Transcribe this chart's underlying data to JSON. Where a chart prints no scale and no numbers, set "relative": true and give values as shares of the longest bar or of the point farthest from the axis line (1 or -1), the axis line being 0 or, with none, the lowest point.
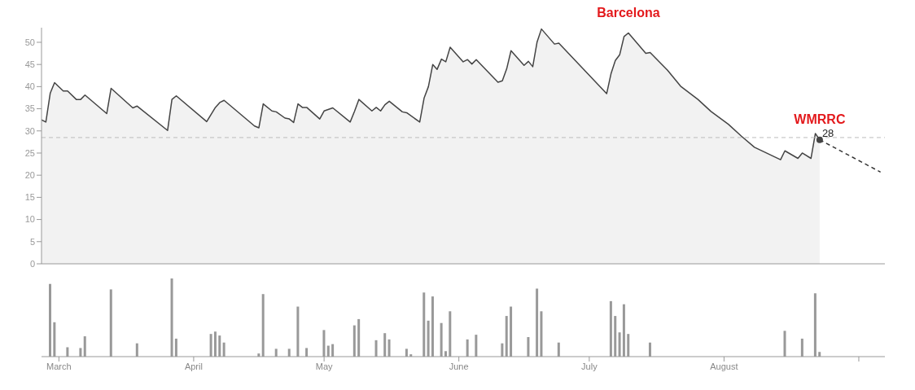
{
  "chart_data": [
    {
      "type": "area",
      "xlim": [
        "--02-25",
        "--09-07"
      ],
      "ylim": [
        0,
        53.3
      ],
      "yticks": [
        0,
        5,
        10,
        15,
        20,
        25,
        30,
        35,
        40,
        45,
        50
      ],
      "tick_labels": "y",
      "series": [
        {
          "type": "area",
          "color": "#444444",
          "x": [
            "--02-25",
            "--02-26",
            "--02-27",
            "--02-28",
            "--03-02",
            "--03-03",
            "--03-05",
            "--03-06",
            "--03-07",
            "--03-12",
            "--03-13",
            "--03-18",
            "--03-19",
            "--03-26",
            "--03-27",
            "--03-28",
            "--04-04",
            "--04-06",
            "--04-07",
            "--04-08",
            "--04-15",
            "--04-16",
            "--04-17",
            "--04-19",
            "--04-20",
            "--04-22",
            "--04-23",
            "--04-24",
            "--04-25",
            "--04-26",
            "--04-27",
            "--04-30",
            "--05-01",
            "--05-03",
            "--05-07",
            "--05-08",
            "--05-09",
            "--05-12",
            "--05-13",
            "--05-14",
            "--05-15",
            "--05-16",
            "--05-19",
            "--05-20",
            "--05-23",
            "--05-24",
            "--05-25",
            "--05-26",
            "--05-27",
            "--05-28",
            "--05-29",
            "--05-30",
            "--06-02",
            "--06-03",
            "--06-04",
            "--06-05",
            "--06-10",
            "--06-11",
            "--06-12",
            "--06-13",
            "--06-16",
            "--06-17",
            "--06-18",
            "--06-19",
            "--06-20",
            "--06-23",
            "--06-24",
            "--07-05",
            "--07-06",
            "--07-07",
            "--07-08",
            "--07-09",
            "--07-10",
            "--07-14",
            "--07-15",
            "--07-19",
            "--07-22",
            "--07-26",
            "--07-29",
            "--08-02",
            "--08-05",
            "--08-08",
            "--08-14",
            "--08-15",
            "--08-18",
            "--08-19",
            "--08-21",
            "--08-22",
            "--08-23"
          ],
          "values": [
            32.5,
            32.0,
            38.5,
            40.9,
            39.0,
            39.0,
            37.1,
            37.1,
            38.1,
            33.9,
            39.6,
            35.2,
            35.6,
            30.1,
            37.1,
            37.9,
            32.1,
            35.3,
            36.4,
            36.9,
            31.1,
            30.7,
            36.1,
            34.5,
            34.3,
            32.9,
            32.7,
            31.9,
            36.1,
            35.3,
            35.3,
            32.7,
            34.5,
            35.2,
            32.0,
            34.4,
            37.1,
            34.5,
            35.3,
            34.5,
            35.9,
            36.7,
            34.3,
            34.1,
            32.0,
            37.4,
            40.0,
            45.0,
            43.9,
            46.2,
            45.6,
            48.9,
            45.6,
            46.1,
            45.1,
            46.1,
            41.0,
            41.3,
            44.0,
            48.1,
            44.8,
            45.7,
            44.5,
            50.1,
            53.0,
            49.6,
            49.8,
            38.4,
            42.9,
            45.9,
            47.2,
            51.3,
            52.1,
            47.5,
            47.7,
            43.7,
            40.1,
            37.1,
            34.4,
            31.5,
            28.8,
            26.3,
            23.5,
            25.5,
            23.8,
            25.0,
            23.8,
            29.4,
            28
          ],
          "value_labels": [
            null,
            null,
            null,
            null,
            null,
            null,
            null,
            null,
            null,
            null,
            null,
            null,
            null,
            null,
            null,
            null,
            null,
            null,
            null,
            null,
            null,
            null,
            null,
            null,
            null,
            null,
            null,
            null,
            null,
            null,
            null,
            null,
            null,
            null,
            null,
            null,
            null,
            null,
            null,
            null,
            null,
            null,
            null,
            null,
            null,
            null,
            null,
            null,
            null,
            null,
            null,
            null,
            null,
            null,
            null,
            null,
            null,
            null,
            null,
            null,
            null,
            null,
            null,
            null,
            null,
            null,
            null,
            null,
            null,
            null,
            null,
            null,
            null,
            null,
            null,
            null,
            null,
            null,
            null,
            null,
            null,
            null,
            null,
            null,
            null,
            null,
            null,
            null,
            "28"
          ]
        },
        {
          "type": "line",
          "color": "#333333",
          "line_style": "dashed",
          "x": [
            "--08-23",
            "--09-06"
          ],
          "values": [
            28,
            20.7
          ]
        }
      ],
      "ref_lines": [
        {
          "axis": "y",
          "value": 28.5,
          "color": "#bbbbbb",
          "line_style": "dashed"
        }
      ],
      "annotations": [
        {
          "text": "Barcelona",
          "x": "--07-10",
          "y": 52.1
        },
        {
          "text": "WMRRC",
          "x": "--08-23",
          "y": 28
        }
      ]
    },
    {
      "type": "bar",
      "relative": true,
      "color": "#999999",
      "tick_labels": "x",
      "xlim": [
        "--02-25",
        "--09-07"
      ],
      "xticks": [
        {
          "value": "--03-01",
          "label": "March"
        },
        {
          "value": "--04-01",
          "label": "April"
        },
        {
          "value": "--05-01",
          "label": "May"
        },
        {
          "value": "--06-01",
          "label": "June"
        },
        {
          "value": "--07-01",
          "label": "July"
        },
        {
          "value": "--08-01",
          "label": "August"
        },
        {
          "value": "--09-01",
          "label": null
        }
      ],
      "x": [
        "--02-27",
        "--02-28",
        "--03-03",
        "--03-06",
        "--03-07",
        "--03-13",
        "--03-19",
        "--03-27",
        "--03-28",
        "--04-05",
        "--04-06",
        "--04-07",
        "--04-08",
        "--04-16",
        "--04-17",
        "--04-20",
        "--04-23",
        "--04-25",
        "--04-27",
        "--05-01",
        "--05-02",
        "--05-03",
        "--05-08",
        "--05-09",
        "--05-13",
        "--05-15",
        "--05-16",
        "--05-20",
        "--05-21",
        "--05-24",
        "--05-25",
        "--05-26",
        "--05-28",
        "--05-29",
        "--05-30",
        "--06-03",
        "--06-05",
        "--06-11",
        "--06-12",
        "--06-13",
        "--06-17",
        "--06-19",
        "--06-20",
        "--06-24",
        "--07-06",
        "--07-07",
        "--07-08",
        "--07-09",
        "--07-10",
        "--07-15",
        "--08-15",
        "--08-19",
        "--08-22",
        "--08-23"
      ],
      "values": [
        0.93,
        0.44,
        0.12,
        0.11,
        0.26,
        0.86,
        0.17,
        1.0,
        0.23,
        0.29,
        0.32,
        0.27,
        0.18,
        0.04,
        0.8,
        0.1,
        0.1,
        0.64,
        0.11,
        0.34,
        0.14,
        0.16,
        0.4,
        0.48,
        0.21,
        0.3,
        0.22,
        0.1,
        0.03,
        0.82,
        0.46,
        0.77,
        0.43,
        0.07,
        0.58,
        0.22,
        0.28,
        0.17,
        0.52,
        0.64,
        0.25,
        0.87,
        0.58,
        0.18,
        0.71,
        0.52,
        0.31,
        0.67,
        0.29,
        0.18,
        0.33,
        0.23,
        0.81,
        0.06
      ]
    }
  ]
}
